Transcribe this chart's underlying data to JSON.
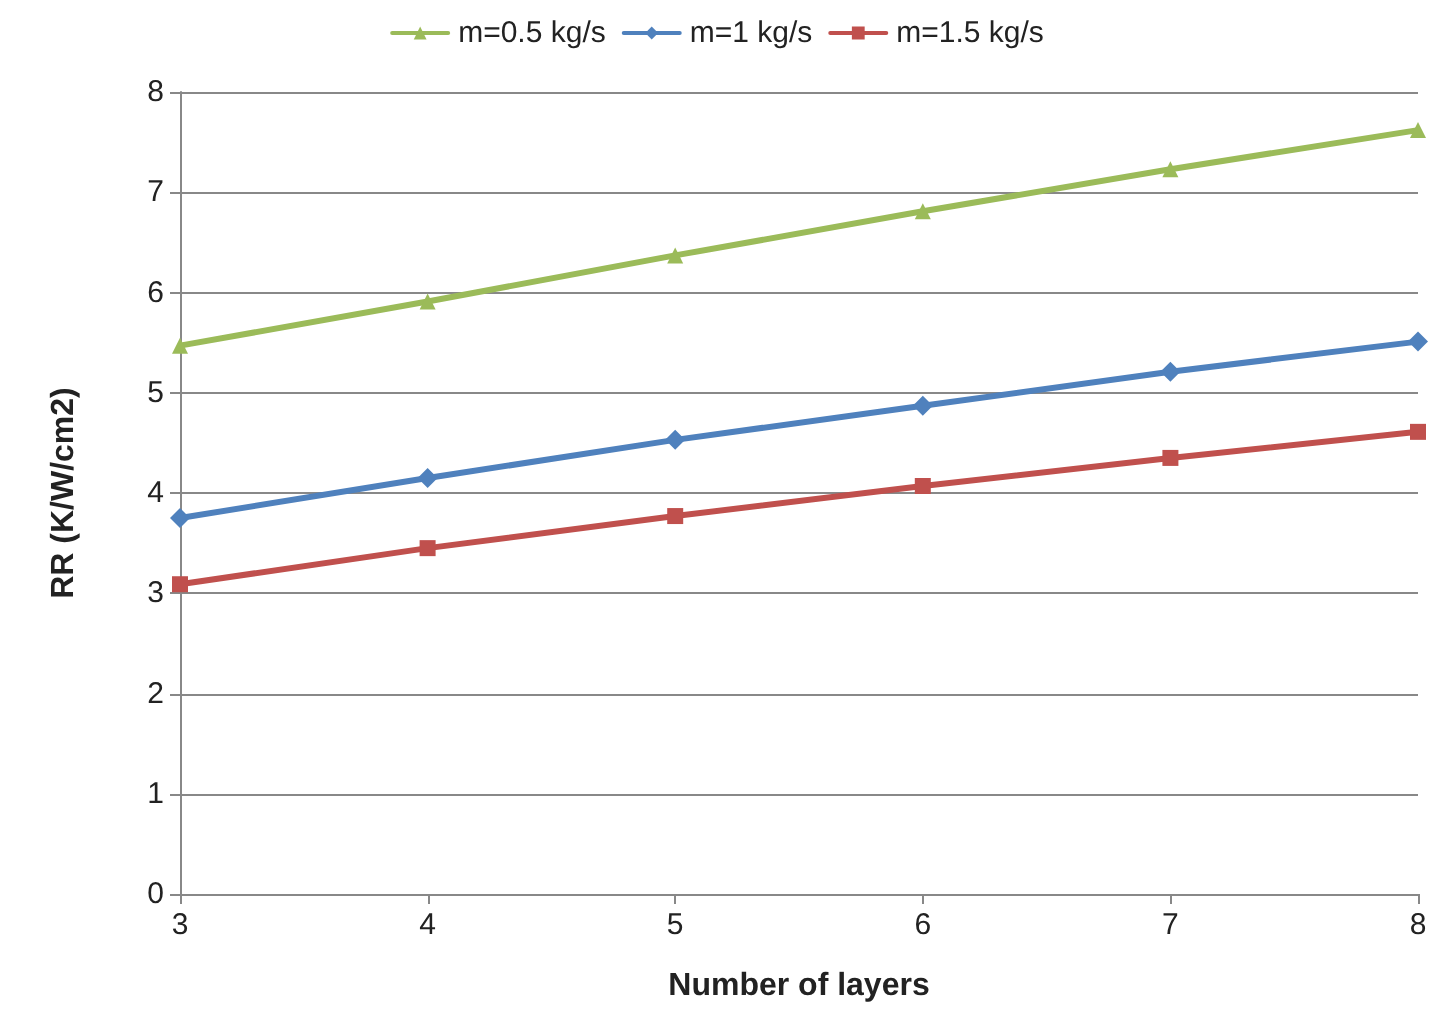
{
  "chart_data": {
    "type": "line",
    "xlabel": "Number of layers",
    "ylabel": "RR (K/W/cm2)",
    "x": [
      3,
      4,
      5,
      6,
      7,
      8
    ],
    "series": [
      {
        "name": "m=0.5 kg/s",
        "color": "#9bbb59",
        "marker": "triangle",
        "values": [
          5.47,
          5.91,
          6.37,
          6.81,
          7.23,
          7.62
        ]
      },
      {
        "name": "m=1 kg/s",
        "color": "#4f81bd",
        "marker": "diamond",
        "values": [
          3.75,
          4.15,
          4.53,
          4.87,
          5.21,
          5.51
        ]
      },
      {
        "name": "m=1.5 kg/s",
        "color": "#c0504d",
        "marker": "square",
        "values": [
          3.09,
          3.45,
          3.77,
          4.07,
          4.35,
          4.61
        ]
      }
    ],
    "xlim": [
      3,
      8
    ],
    "xticks": [
      3,
      4,
      5,
      6,
      7,
      8
    ],
    "ylim": [
      0,
      8
    ],
    "yticks": [
      0,
      1,
      2,
      3,
      4,
      5,
      6,
      7,
      8
    ],
    "grid": "y",
    "legend": "top",
    "line_style": "solid"
  }
}
